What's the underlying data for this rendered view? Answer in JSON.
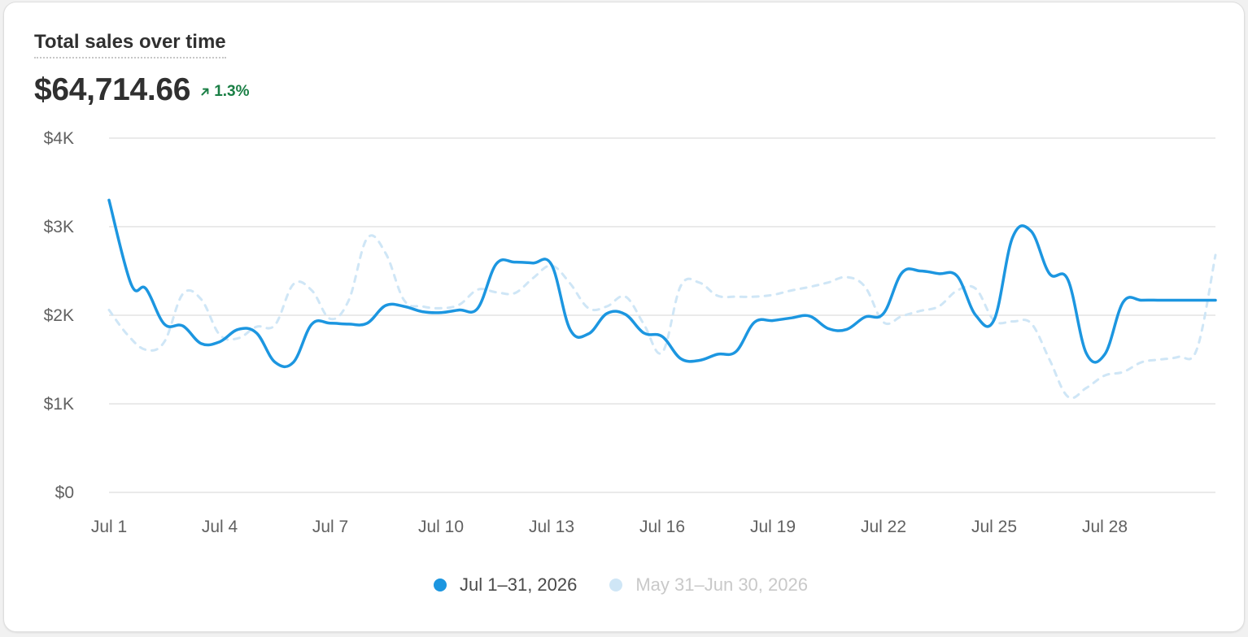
{
  "card": {
    "title": "Total sales over time",
    "total": "$64,714.66",
    "change": "1.3%",
    "change_direction": "up",
    "change_color": "#1a7f45"
  },
  "chart_data": {
    "type": "line",
    "title": "Total sales over time",
    "y_tick_labels": [
      "$0",
      "$1K",
      "$2K",
      "$3K",
      "$4K"
    ],
    "y_ticks": [
      0,
      1000,
      2000,
      3000,
      4000
    ],
    "ylim": [
      0,
      4000
    ],
    "x_tick_labels": [
      "Jul 1",
      "Jul 4",
      "Jul 7",
      "Jul 10",
      "Jul 13",
      "Jul 16",
      "Jul 19",
      "Jul 22",
      "Jul 25",
      "Jul 28"
    ],
    "x_tick_days": [
      1,
      4,
      7,
      10,
      13,
      16,
      19,
      22,
      25,
      28
    ],
    "x_range": [
      1,
      31
    ],
    "grid": true,
    "legend_position": "bottom-center",
    "series": [
      {
        "name": "Jul 1–31, 2026",
        "color": "#1c96e0",
        "style": "solid",
        "x": [
          1,
          1.6,
          2,
          2.5,
          3,
          3.5,
          4,
          4.5,
          5,
          5.5,
          6,
          6.5,
          7,
          7.5,
          8,
          8.5,
          9,
          9.5,
          10,
          10.5,
          11,
          11.5,
          12,
          12.5,
          13,
          13.5,
          14,
          14.5,
          15,
          15.5,
          16,
          16.5,
          17,
          17.5,
          18,
          18.5,
          19,
          19.5,
          20,
          20.5,
          21,
          21.5,
          22,
          22.5,
          23,
          23.5,
          24,
          24.5,
          25,
          25.5,
          26,
          26.5,
          27,
          27.5,
          28,
          28.5,
          29,
          29.5,
          30,
          31
        ],
        "values": [
          3300,
          2350,
          2300,
          1900,
          1880,
          1680,
          1700,
          1840,
          1800,
          1470,
          1470,
          1900,
          1910,
          1900,
          1910,
          2110,
          2100,
          2040,
          2030,
          2060,
          2080,
          2580,
          2600,
          2590,
          2570,
          1840,
          1790,
          2020,
          2010,
          1800,
          1760,
          1510,
          1490,
          1560,
          1590,
          1920,
          1940,
          1970,
          1990,
          1850,
          1840,
          1980,
          2020,
          2480,
          2500,
          2470,
          2440,
          2000,
          1950,
          2880,
          2950,
          2470,
          2400,
          1570,
          1560,
          2150,
          2170,
          2170,
          2170,
          2170
        ]
      },
      {
        "name": "May 31–Jun 30, 2026",
        "color": "#cfe6f6",
        "style": "dashed",
        "x": [
          1,
          1.5,
          2,
          2.5,
          3,
          3.5,
          4,
          4.5,
          5,
          5.5,
          6,
          6.5,
          7,
          7.5,
          8,
          8.5,
          9,
          9.5,
          10,
          10.5,
          11,
          11.5,
          12,
          12.5,
          13,
          13.5,
          14,
          14.5,
          15,
          15.5,
          16,
          16.5,
          17,
          17.5,
          18,
          18.5,
          19,
          19.5,
          20,
          20.5,
          21,
          21.5,
          22,
          22.5,
          23,
          23.5,
          24,
          24.5,
          25,
          25.5,
          26,
          26.5,
          27,
          27.5,
          28,
          28.5,
          29,
          29.5,
          30,
          30.5,
          31
        ],
        "values": [
          2060,
          1780,
          1610,
          1700,
          2240,
          2180,
          1780,
          1740,
          1870,
          1890,
          2350,
          2280,
          1960,
          2170,
          2870,
          2700,
          2170,
          2100,
          2080,
          2120,
          2290,
          2260,
          2250,
          2420,
          2560,
          2360,
          2080,
          2100,
          2210,
          1900,
          1580,
          2330,
          2370,
          2220,
          2210,
          2210,
          2230,
          2280,
          2320,
          2370,
          2430,
          2320,
          1920,
          1990,
          2050,
          2100,
          2280,
          2300,
          1940,
          1930,
          1910,
          1500,
          1080,
          1180,
          1320,
          1360,
          1470,
          1500,
          1530,
          1620,
          2680
        ]
      }
    ]
  }
}
